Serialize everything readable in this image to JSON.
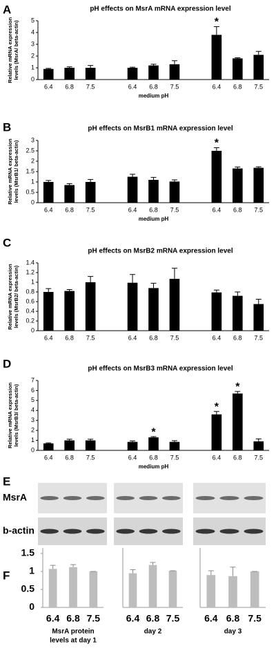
{
  "panel_letters": [
    "A",
    "B",
    "C",
    "D",
    "E",
    "F"
  ],
  "blot": {
    "labels": [
      "MsrA",
      "b-actin"
    ]
  },
  "chart_data": [
    {
      "type": "bar",
      "title": "pH effects on MsrA mRNA expression level",
      "ylabel": [
        "Relative mRNA expression",
        "levels (MsrA/ beta-actin)"
      ],
      "xlabel": "medium pH",
      "categories": [
        "6.4",
        "6.8",
        "7.5",
        null,
        "6.4",
        "6.8",
        "7.5",
        null,
        "6.4",
        "6.8",
        "7.5"
      ],
      "values": [
        0.9,
        1.0,
        1.0,
        null,
        1.0,
        1.2,
        1.3,
        null,
        3.8,
        1.8,
        2.1
      ],
      "errors": [
        0.05,
        0.08,
        0.2,
        null,
        0.05,
        0.1,
        0.3,
        null,
        0.7,
        0.05,
        0.3
      ],
      "markers": [
        null,
        null,
        null,
        null,
        null,
        null,
        null,
        null,
        "*",
        null,
        null
      ],
      "color": "#000000",
      "ylim": [
        0,
        5
      ],
      "yticks": [
        0,
        1,
        2,
        3,
        4,
        5
      ]
    },
    {
      "type": "bar",
      "title": "pH effects on MsrB1 mRNA expression level",
      "ylabel": [
        "Relative mRNA expression",
        "levels (MsrB1/ beta-actin)"
      ],
      "xlabel": "medium pH",
      "categories": [
        "6.4",
        "6.8",
        "7.5",
        null,
        "6.4",
        "6.8",
        "7.5",
        null,
        "6.4",
        "6.8",
        "7.5"
      ],
      "values": [
        1.0,
        0.85,
        1.0,
        null,
        1.25,
        1.1,
        1.02,
        null,
        2.5,
        1.65,
        1.68
      ],
      "errors": [
        0.07,
        0.07,
        0.12,
        null,
        0.12,
        0.12,
        0.08,
        null,
        0.15,
        0.07,
        0.05
      ],
      "markers": [
        null,
        null,
        null,
        null,
        null,
        null,
        null,
        null,
        "*",
        null,
        null
      ],
      "color": "#000000",
      "ylim": [
        0,
        3
      ],
      "yticks": [
        0,
        0.5,
        1,
        1.5,
        2,
        2.5,
        3
      ]
    },
    {
      "type": "bar",
      "title": "pH effects on MsrB2 mRNA expression level",
      "ylabel": [
        "Relative mRNA expression",
        "levels (MsrB2/ beta-actin)"
      ],
      "categories": [
        "6.4",
        "6.8",
        "7.5",
        null,
        "6.4",
        "6.8",
        "7.5",
        null,
        "6.4",
        "6.8",
        "7.5"
      ],
      "values": [
        0.8,
        0.82,
        1.0,
        null,
        0.99,
        0.88,
        1.07,
        null,
        0.79,
        0.72,
        0.55
      ],
      "errors": [
        0.07,
        0.03,
        0.12,
        null,
        0.17,
        0.1,
        0.22,
        null,
        0.05,
        0.08,
        0.1
      ],
      "color": "#000000",
      "ylim": [
        0,
        1.4
      ],
      "yticks": [
        0,
        0.2,
        0.4,
        0.6,
        0.8,
        1,
        1.2,
        1.4
      ]
    },
    {
      "type": "bar",
      "title": "pH effects on MsrB3 mRNA expression level",
      "ylabel": [
        "Relative mRNA expression",
        "levels (MsrB3/ beta-actin)"
      ],
      "xlabel": "medium pH",
      "categories": [
        "6.4",
        "6.8",
        "7.5",
        null,
        "6.4",
        "6.8",
        "7.5",
        null,
        "6.4",
        "6.8",
        "7.5"
      ],
      "values": [
        0.7,
        1.0,
        1.0,
        null,
        0.85,
        1.3,
        0.85,
        null,
        3.6,
        5.7,
        0.9
      ],
      "errors": [
        0.05,
        0.12,
        0.12,
        null,
        0.1,
        0.08,
        0.12,
        null,
        0.3,
        0.2,
        0.25
      ],
      "markers": [
        null,
        null,
        null,
        null,
        null,
        "*",
        null,
        null,
        "*",
        "*",
        null
      ],
      "color": "#000000",
      "ylim": [
        0,
        7
      ],
      "yticks": [
        0,
        1,
        2,
        3,
        4,
        5,
        6,
        7
      ]
    },
    {
      "type": "bar",
      "caption": [
        "MsrA protein",
        "levels at day 1"
      ],
      "categories": [
        "6.4",
        "6.8",
        "7.5"
      ],
      "values": [
        1.07,
        1.12,
        1.0
      ],
      "errors": [
        0.1,
        0.07,
        0
      ],
      "color": "#bdbdbd",
      "ylim": [
        0,
        1.5
      ],
      "yticks": [
        0,
        0.5,
        1,
        1.5
      ]
    },
    {
      "type": "bar",
      "caption": [
        "day 2"
      ],
      "categories": [
        "6.4",
        "6.8",
        "7.5"
      ],
      "values": [
        0.95,
        1.18,
        1.02
      ],
      "errors": [
        0.1,
        0.07,
        0
      ],
      "color": "#bdbdbd",
      "ylim": [
        0,
        1.5
      ]
    },
    {
      "type": "bar",
      "caption": [
        "day 3"
      ],
      "categories": [
        "6.4",
        "6.8",
        "7.5"
      ],
      "values": [
        0.9,
        0.87,
        1.0
      ],
      "errors": [
        0.12,
        0.25,
        0
      ],
      "color": "#bdbdbd",
      "ylim": [
        0,
        1.5
      ]
    }
  ]
}
